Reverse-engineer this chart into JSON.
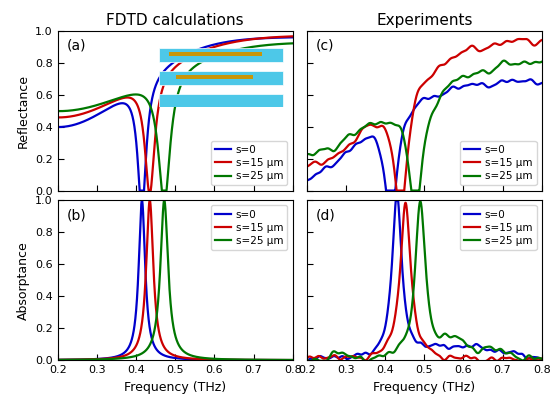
{
  "title_left": "FDTD calculations",
  "title_right": "Experiments",
  "xlabel": "Frequency (THz)",
  "ylabel_top": "Reflectance",
  "ylabel_bottom": "Absorptance",
  "xlim": [
    0.2,
    0.8
  ],
  "ylim_refl": [
    0.0,
    1.0
  ],
  "ylim_abs": [
    0.0,
    1.0
  ],
  "xticks": [
    0.2,
    0.3,
    0.4,
    0.5,
    0.6,
    0.7,
    0.8
  ],
  "yticks": [
    0.0,
    0.2,
    0.4,
    0.6,
    0.8,
    1.0
  ],
  "colors": [
    "#0000cc",
    "#cc0000",
    "#007700"
  ],
  "labels": [
    "s=0",
    "s=15 μm",
    "s=25 μm"
  ],
  "panel_labels": [
    "(a)",
    "(b)",
    "(c)",
    "(d)"
  ],
  "inset_cyan": "#4DC8E8",
  "inset_gold": "#C8960A",
  "background": "#ffffff",
  "lw": 1.6
}
